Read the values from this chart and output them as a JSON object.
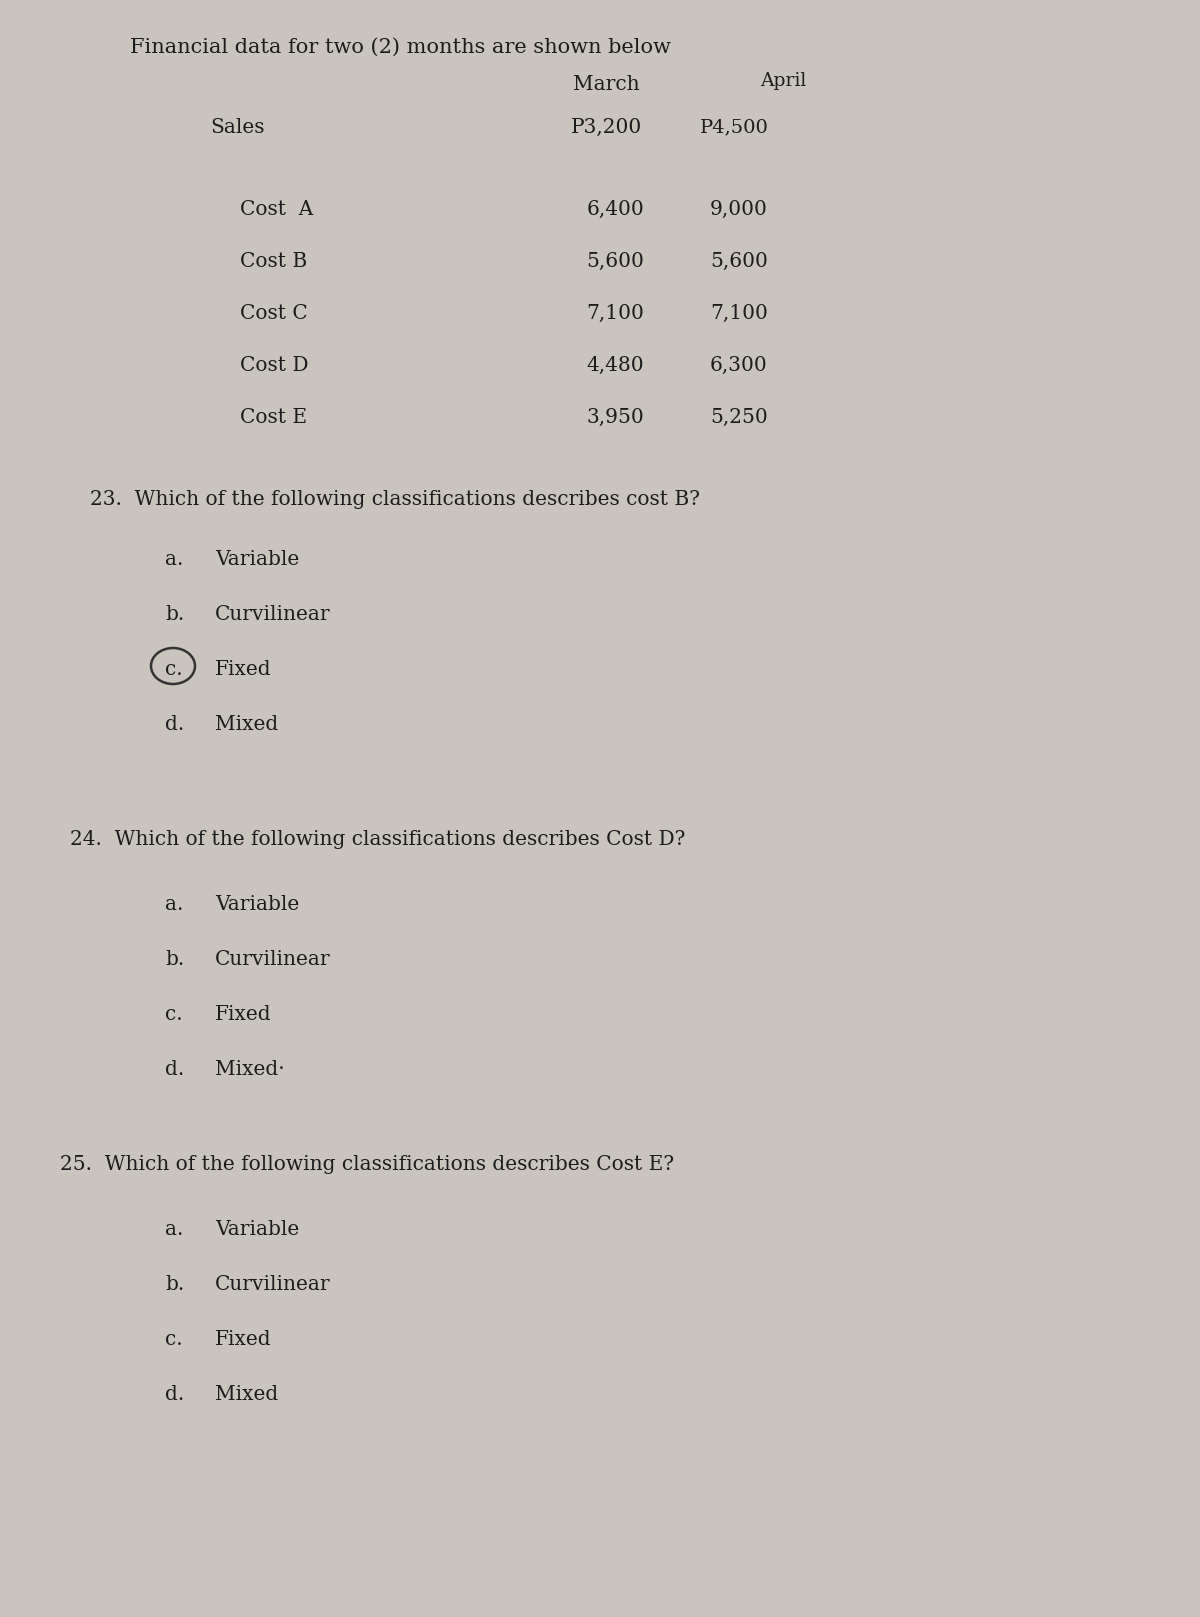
{
  "bg_color": "#c9c5be",
  "text_color": "#1c1c1c",
  "title": "Financial data for two (2) months are shown below",
  "col_march": "March",
  "col_april": "April",
  "sales_label": "Sales",
  "sales_march": "P3,200",
  "sales_april": "P4,500",
  "costs": [
    {
      "label": "Cost  A",
      "march": "6,400",
      "april": "9,000"
    },
    {
      "label": "Cost B",
      "march": "5,600",
      "april": "5,600"
    },
    {
      "label": "Cost C",
      "march": "7,100",
      "april": "7,100"
    },
    {
      "label": "Cost D",
      "march": "4,480",
      "april": "6,300"
    },
    {
      "label": "Cost E",
      "march": "3,950",
      "april": "5,250"
    }
  ],
  "q23": "23.  Which of the following classifications describes cost B?",
  "q23_options": [
    {
      "letter": "a.",
      "text": "Variable",
      "circled": false
    },
    {
      "letter": "b.",
      "text": "Curvilinear",
      "circled": false
    },
    {
      "letter": "c.",
      "text": "Fixed",
      "circled": true
    },
    {
      "letter": "d.",
      "text": "Mixed",
      "circled": false
    }
  ],
  "q24": "24.  Which of the following classifications describes Cost D?",
  "q24_options": [
    {
      "letter": "a.",
      "text": "Variable",
      "circled": false
    },
    {
      "letter": "b.",
      "text": "Curvilinear",
      "circled": false
    },
    {
      "letter": "c.",
      "text": "Fixed",
      "circled": false
    },
    {
      "letter": "d.",
      "text": "Mixed·",
      "circled": false
    }
  ],
  "q25": "25.  Which of the following classifications describes Cost E?",
  "q25_options": [
    {
      "letter": "a.",
      "text": "Variable",
      "circled": false
    },
    {
      "letter": "b.",
      "text": "Curvilinear",
      "circled": false
    },
    {
      "letter": "c.",
      "text": "Fixed",
      "circled": false
    },
    {
      "letter": "d.",
      "text": "Mixed",
      "circled": false
    }
  ]
}
